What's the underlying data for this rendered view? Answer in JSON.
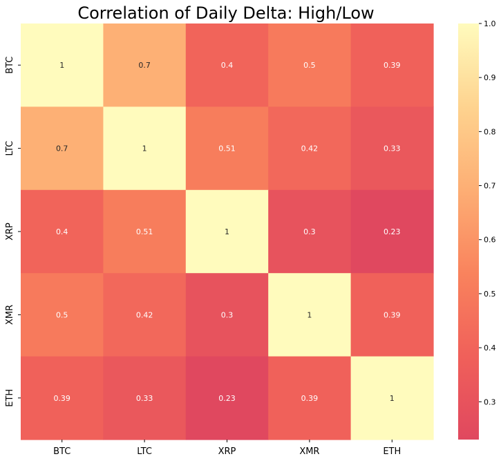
{
  "chart_data": {
    "type": "heatmap",
    "title": "Correlation of Daily Delta: High/Low",
    "xlabel": "",
    "ylabel": "",
    "x_categories": [
      "BTC",
      "LTC",
      "XRP",
      "XMR",
      "ETH"
    ],
    "y_categories": [
      "BTC",
      "LTC",
      "XRP",
      "XMR",
      "ETH"
    ],
    "values": [
      [
        1,
        0.7,
        0.4,
        0.5,
        0.39
      ],
      [
        0.7,
        1,
        0.51,
        0.42,
        0.33
      ],
      [
        0.4,
        0.51,
        1,
        0.3,
        0.23
      ],
      [
        0.5,
        0.42,
        0.3,
        1,
        0.39
      ],
      [
        0.39,
        0.33,
        0.23,
        0.39,
        1
      ]
    ],
    "annotations": [
      [
        "1",
        "0.7",
        "0.4",
        "0.5",
        "0.39"
      ],
      [
        "0.7",
        "1",
        "0.51",
        "0.42",
        "0.33"
      ],
      [
        "0.4",
        "0.51",
        "1",
        "0.3",
        "0.23"
      ],
      [
        "0.5",
        "0.42",
        "0.3",
        "1",
        "0.39"
      ],
      [
        "0.39",
        "0.33",
        "0.23",
        "0.39",
        "1"
      ]
    ],
    "colorbar": {
      "min": 0.23,
      "max": 1.0,
      "ticks": [
        0.3,
        0.4,
        0.5,
        0.6,
        0.7,
        0.8,
        0.9,
        1.0
      ],
      "tick_labels": [
        "0.3",
        "0.4",
        "0.5",
        "0.6",
        "0.7",
        "0.8",
        "0.9",
        "1.0"
      ],
      "colormap_stops": [
        "#e0485f",
        "#f0605a",
        "#f9835d",
        "#fdae74",
        "#fed38f",
        "#fffbbd"
      ]
    },
    "grid": false
  }
}
